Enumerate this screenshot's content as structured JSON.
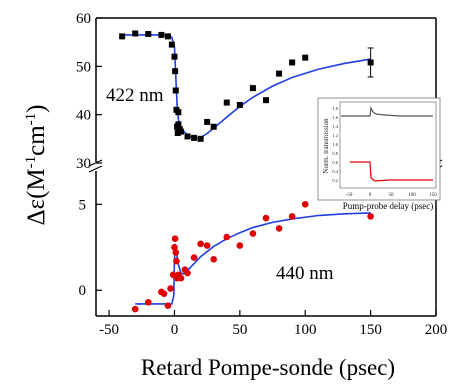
{
  "chart_data": {
    "type": "scatter",
    "xlabel": "Retard Pompe-sonde (psec)",
    "ylabel_prefix": "Δε(M",
    "ylabel_sup1": "-1",
    "ylabel_mid": "cm",
    "ylabel_sup2": "-1",
    "ylabel_suffix": ")",
    "xlim": [
      -60,
      200
    ],
    "x_ticks": [
      -50,
      0,
      50,
      100,
      150,
      200
    ],
    "x_tick_labels": [
      "-50",
      "0",
      "50",
      "100",
      "150",
      "200"
    ],
    "upper_panel": {
      "ylim": [
        30,
        60
      ],
      "y_ticks": [
        30,
        40,
        50,
        60
      ],
      "y_tick_labels": [
        "30",
        "40",
        "50",
        "60"
      ],
      "series": [
        {
          "name": "422 nm",
          "color": "#000000",
          "marker": "square",
          "points": [
            [
              -40,
              56.2
            ],
            [
              -30,
              56.8
            ],
            [
              -20,
              56.7
            ],
            [
              -10,
              56.5
            ],
            [
              -5,
              56.2
            ],
            [
              -2,
              54.5
            ],
            [
              0,
              52
            ],
            [
              0.5,
              49
            ],
            [
              1,
              45
            ],
            [
              1.5,
              41
            ],
            [
              2,
              37.5
            ],
            [
              2.5,
              36.2
            ],
            [
              3,
              38
            ],
            [
              3,
              40.5
            ],
            [
              4,
              37
            ],
            [
              5,
              36.5
            ],
            [
              10,
              35.5
            ],
            [
              15,
              35.2
            ],
            [
              20,
              35
            ],
            [
              25,
              38.5
            ],
            [
              30,
              37.5
            ],
            [
              40,
              42.5
            ],
            [
              50,
              42
            ],
            [
              60,
              45.5
            ],
            [
              70,
              43
            ],
            [
              80,
              48.5
            ],
            [
              90,
              50.8
            ],
            [
              100,
              51.8
            ],
            [
              150,
              50.8
            ]
          ],
          "error_bar": {
            "x": 150,
            "y": 50.8,
            "err": 3
          },
          "fit": [
            [
              -40,
              56.5
            ],
            [
              -5,
              56.5
            ],
            [
              -2,
              56
            ],
            [
              0,
              54
            ],
            [
              1,
              48
            ],
            [
              2,
              42
            ],
            [
              3,
              39
            ],
            [
              5,
              37.2
            ],
            [
              10,
              35.7
            ],
            [
              15,
              35.1
            ],
            [
              20,
              35.3
            ],
            [
              25,
              36.1
            ],
            [
              30,
              37.2
            ],
            [
              40,
              39.5
            ],
            [
              50,
              41.7
            ],
            [
              60,
              43.6
            ],
            [
              75,
              45.9
            ],
            [
              90,
              47.7
            ],
            [
              110,
              49.4
            ],
            [
              130,
              50.6
            ],
            [
              150,
              51.5
            ]
          ]
        }
      ]
    },
    "lower_panel": {
      "ylim": [
        -1.5,
        7
      ],
      "y_ticks": [
        0,
        5
      ],
      "y_tick_labels": [
        "0",
        "5"
      ],
      "series": [
        {
          "name": "440 nm",
          "color": "#e00000",
          "marker": "circle",
          "points": [
            [
              -30,
              -1.1
            ],
            [
              -20,
              -0.7
            ],
            [
              -10,
              -0.1
            ],
            [
              -8,
              -0.2
            ],
            [
              -5,
              -0.9
            ],
            [
              -3,
              0.1
            ],
            [
              -1,
              0.9
            ],
            [
              0,
              2.5
            ],
            [
              0.5,
              3.0
            ],
            [
              1,
              2.2
            ],
            [
              1.5,
              1.7
            ],
            [
              2,
              0.7
            ],
            [
              3,
              0.9
            ],
            [
              5,
              0.7
            ],
            [
              8,
              1.2
            ],
            [
              10,
              1.0
            ],
            [
              15,
              1.9
            ],
            [
              20,
              2.7
            ],
            [
              25,
              2.6
            ],
            [
              30,
              1.8
            ],
            [
              40,
              3.1
            ],
            [
              50,
              2.6
            ],
            [
              60,
              3.3
            ],
            [
              70,
              4.2
            ],
            [
              80,
              3.6
            ],
            [
              90,
              4.3
            ],
            [
              100,
              5.0
            ],
            [
              150,
              4.3
            ]
          ],
          "fit": [
            [
              -30,
              -0.8
            ],
            [
              -2,
              -0.8
            ],
            [
              -0.5,
              -0.3
            ],
            [
              0,
              1.8
            ],
            [
              0.7,
              2.7
            ],
            [
              1.5,
              2.2
            ],
            [
              3,
              1.5
            ],
            [
              5,
              1.0
            ],
            [
              7,
              0.95
            ],
            [
              10,
              1.15
            ],
            [
              15,
              1.55
            ],
            [
              20,
              1.95
            ],
            [
              30,
              2.55
            ],
            [
              40,
              3.0
            ],
            [
              50,
              3.35
            ],
            [
              60,
              3.65
            ],
            [
              75,
              3.95
            ],
            [
              90,
              4.15
            ],
            [
              110,
              4.35
            ],
            [
              130,
              4.45
            ],
            [
              150,
              4.5
            ]
          ]
        }
      ]
    },
    "annotations": [
      "422 nm",
      "440 nm"
    ],
    "inset": {
      "type": "line",
      "ylabel": "Norm. transmission",
      "xlabel": "Pump-probe delay (psec)",
      "x_tick_labels": [
        "-50",
        "0",
        "50",
        "100",
        "150"
      ],
      "y_tick_labels": [
        "1.8",
        "1.6",
        "1.4",
        "1.2",
        "1.0",
        "0.8",
        "0.6",
        "0.4",
        "0.2"
      ],
      "series": [
        {
          "color": "#555555"
        },
        {
          "color": "#e00000"
        }
      ]
    }
  }
}
